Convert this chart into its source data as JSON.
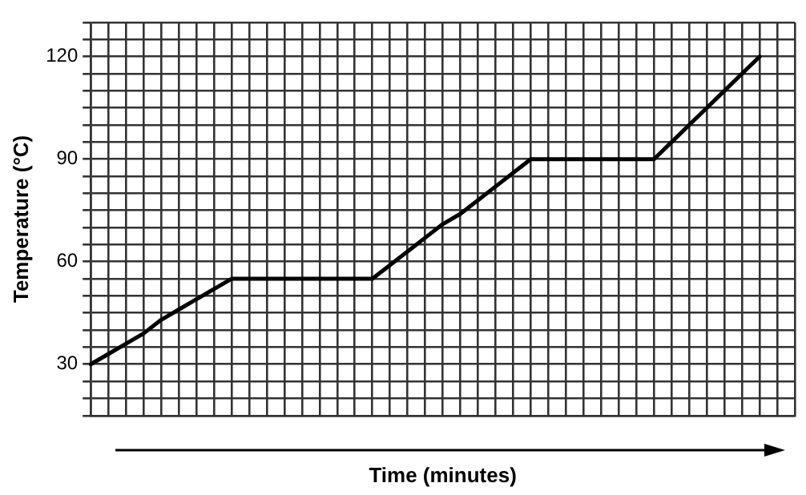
{
  "chart_data": {
    "type": "line",
    "xlabel": "Time (minutes)",
    "ylabel": "Temperature (°C)",
    "categories": [
      null,
      null,
      null,
      null,
      null,
      null,
      null,
      null,
      null,
      null,
      null,
      null,
      null,
      null,
      null,
      null,
      null,
      null,
      null,
      null,
      null,
      null,
      null,
      null,
      null,
      null,
      null,
      null,
      null,
      null,
      null,
      null,
      null,
      null,
      null,
      null,
      null,
      null,
      null,
      null,
      null
    ],
    "series": [
      {
        "color": "#000000",
        "values": [
          30,
          33,
          36,
          39,
          43,
          46,
          49,
          52,
          55,
          55,
          55,
          55,
          55,
          55,
          55,
          55,
          55,
          59,
          63,
          67,
          71,
          74,
          78,
          82,
          86,
          90,
          90,
          90,
          90,
          90,
          90,
          90,
          90,
          95,
          100,
          105,
          110,
          115,
          120,
          null,
          null
        ]
      }
    ],
    "ylim": [
      15,
      130
    ],
    "yticks": [
      {
        "value": 15,
        "label": null
      },
      {
        "value": 20,
        "label": null
      },
      {
        "value": 25,
        "label": null
      },
      30,
      {
        "value": 35,
        "label": null
      },
      {
        "value": 40,
        "label": null
      },
      {
        "value": 45,
        "label": null
      },
      {
        "value": 50,
        "label": null
      },
      {
        "value": 55,
        "label": null
      },
      60,
      {
        "value": 65,
        "label": null
      },
      {
        "value": 70,
        "label": null
      },
      {
        "value": 75,
        "label": null
      },
      {
        "value": 80,
        "label": null
      },
      {
        "value": 85,
        "label": null
      },
      90,
      {
        "value": 95,
        "label": null
      },
      {
        "value": 100,
        "label": null
      },
      {
        "value": 105,
        "label": null
      },
      {
        "value": 110,
        "label": null
      },
      {
        "value": 115,
        "label": null
      },
      120,
      {
        "value": 125,
        "label": null
      },
      {
        "value": 130,
        "label": null
      }
    ],
    "grid": true,
    "legend": false,
    "marker": "none",
    "line_style": "solid",
    "tick_labels": "y"
  }
}
